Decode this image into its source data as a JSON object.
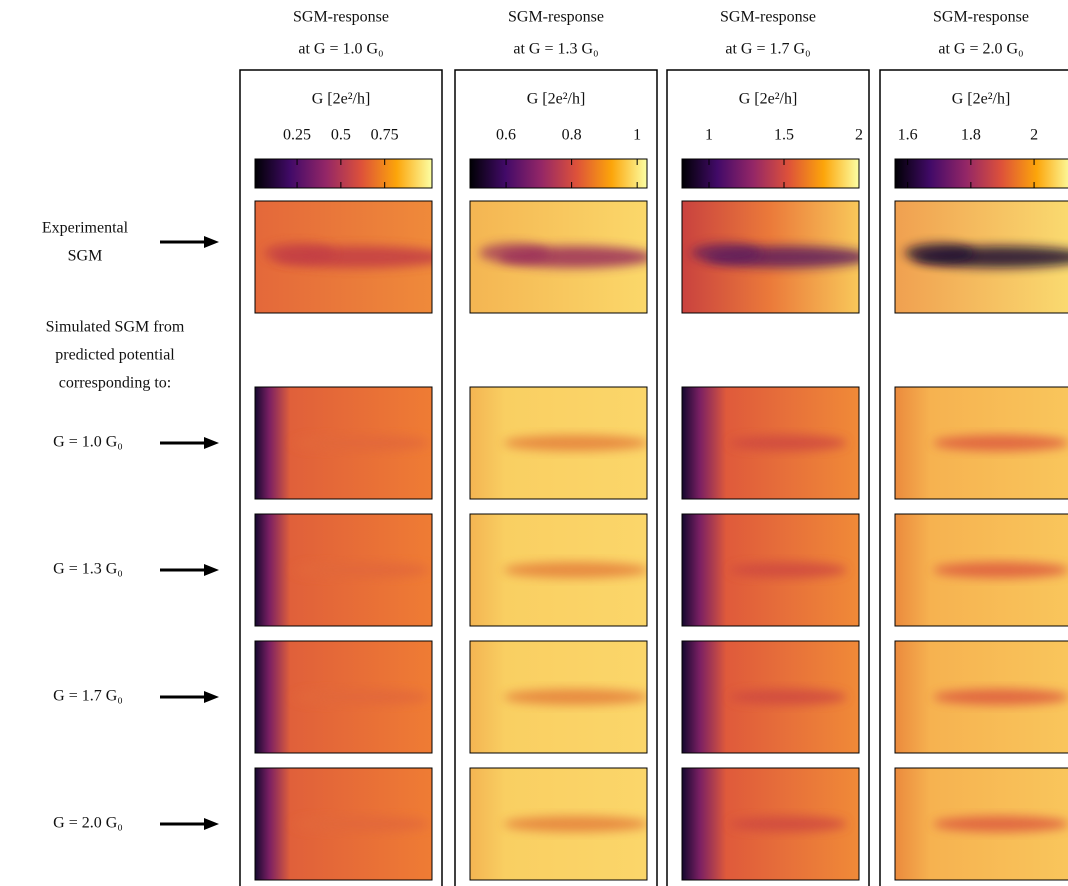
{
  "columns": [
    {
      "title": "SGM-response",
      "subtitle": "at G = 1.0 G₀",
      "colorbar": {
        "label": "G [2e²/h]",
        "lim": [
          0.01,
          1.02
        ],
        "ticks": [
          0.25,
          0.5,
          0.75
        ]
      }
    },
    {
      "title": "SGM-response",
      "subtitle": "at G = 1.3 G₀",
      "colorbar": {
        "label": "G [2e²/h]",
        "lim": [
          0.49,
          1.03
        ],
        "ticks": [
          0.6,
          0.8,
          1
        ]
      }
    },
    {
      "title": "SGM-response",
      "subtitle": "at G = 1.7 G₀",
      "colorbar": {
        "label": "G [2e²/h]",
        "lim": [
          0.82,
          2.0
        ],
        "ticks": [
          1,
          1.5,
          2
        ]
      }
    },
    {
      "title": "SGM-response",
      "subtitle": "at G = 2.0 G₀",
      "colorbar": {
        "label": "G [2e²/h]",
        "lim": [
          1.56,
          2.12
        ],
        "ticks": [
          1.6,
          1.8,
          2
        ]
      }
    }
  ],
  "row_labels": {
    "experimental": [
      "Experimental",
      "SGM"
    ],
    "simulated_header": [
      "Simulated SGM from",
      "predicted potential",
      "corresponding to:"
    ],
    "simulated": [
      "G = 1.0 G₀",
      "G = 1.3 G₀",
      "G = 1.7 G₀",
      "G = 2.0 G₀"
    ]
  }
}
